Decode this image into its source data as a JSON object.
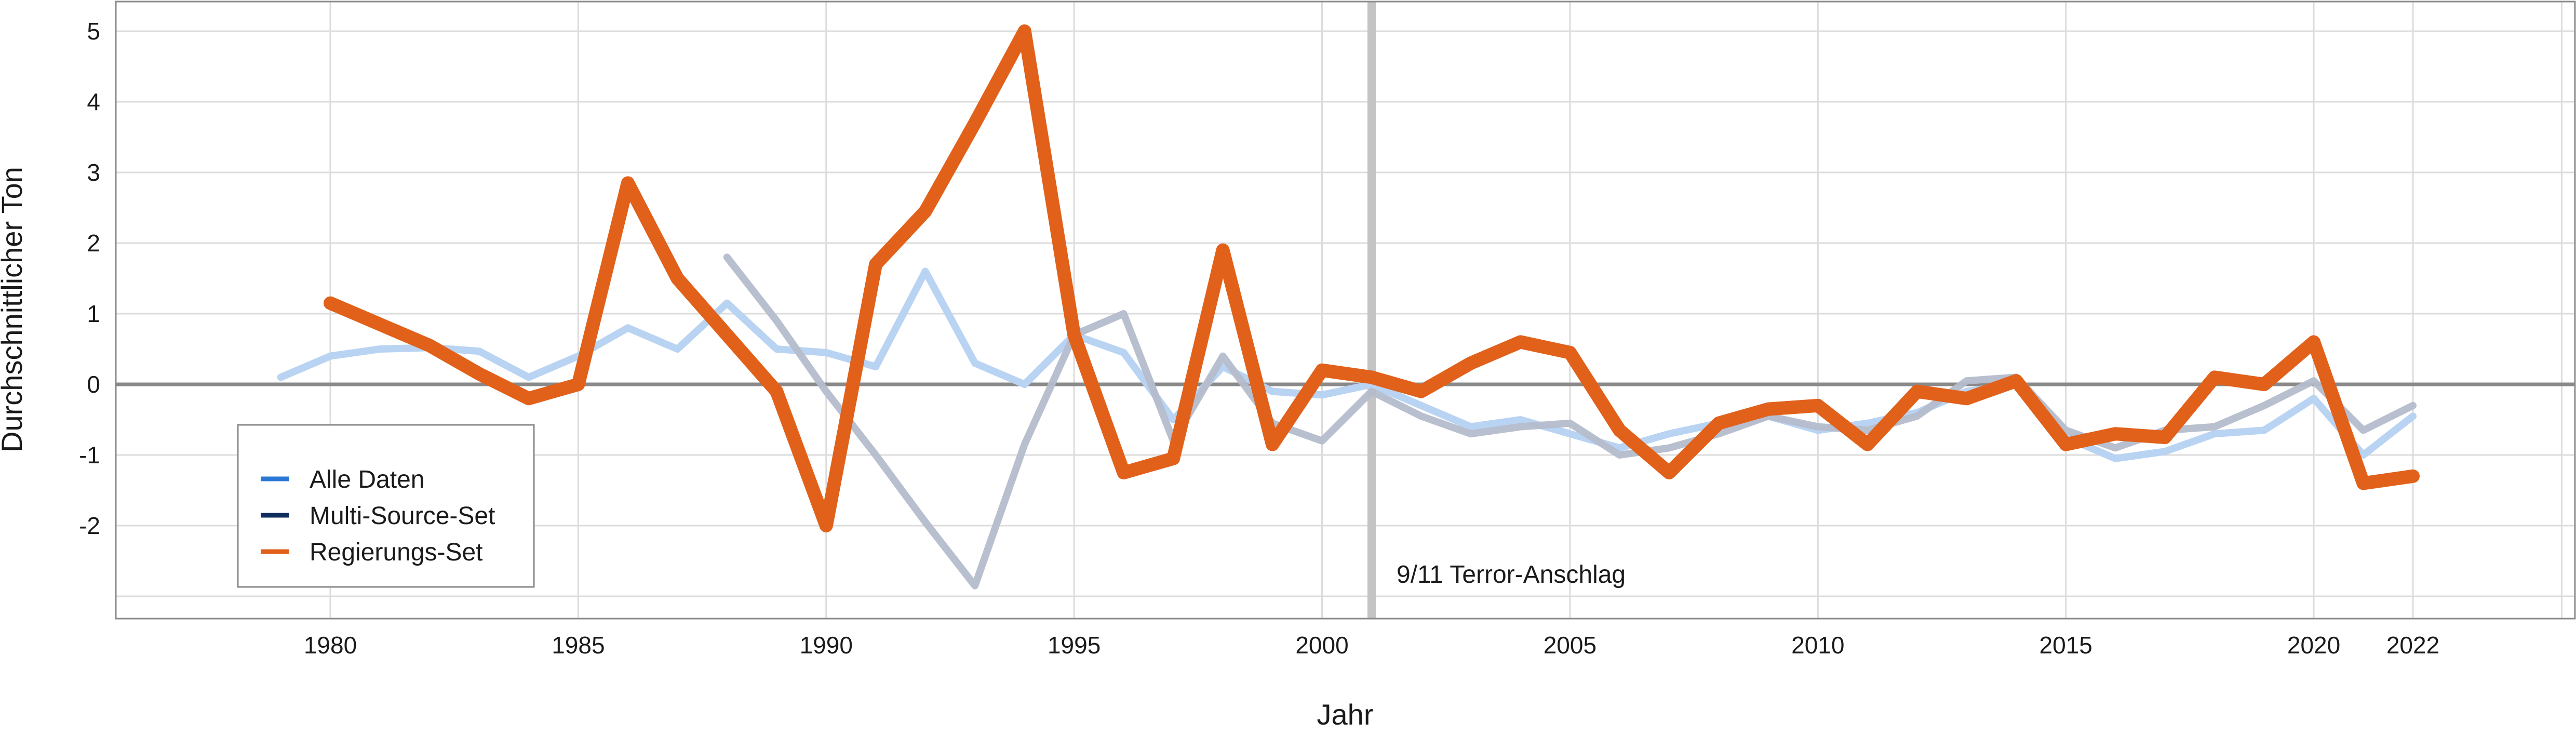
{
  "chart_data": {
    "type": "line",
    "xlabel": "Jahr",
    "ylabel": "Durchschnittlicher Ton",
    "xlim": [
      1975,
      2025
    ],
    "ylim": [
      -3.3,
      5.4
    ],
    "x_ticks": [
      1980,
      1985,
      1990,
      1995,
      2000,
      2005,
      2010,
      2015,
      2020,
      2022
    ],
    "y_ticks": [
      5,
      4,
      3,
      2,
      1,
      0,
      -1,
      -2
    ],
    "grid": true,
    "legend_position": "bottom-left",
    "series": [
      {
        "name": "Alle Daten",
        "color": "#b9d3f2",
        "x": [
          1979,
          1980,
          1981,
          1982,
          1983,
          1984,
          1985,
          1986,
          1987,
          1988,
          1989,
          1990,
          1991,
          1992,
          1993,
          1994,
          1995,
          1996,
          1997,
          1998,
          1999,
          2000,
          2001,
          2002,
          2003,
          2004,
          2005,
          2006,
          2007,
          2008,
          2009,
          2010,
          2011,
          2012,
          2013,
          2014,
          2015,
          2016,
          2017,
          2018,
          2019,
          2020,
          2021,
          2022
        ],
        "values": [
          0.1,
          0.4,
          0.5,
          0.52,
          0.47,
          0.1,
          0.4,
          0.8,
          0.5,
          1.15,
          0.5,
          0.45,
          0.25,
          1.6,
          0.3,
          0.0,
          0.7,
          0.45,
          -0.5,
          0.25,
          -0.1,
          -0.15,
          0.0,
          -0.3,
          -0.6,
          -0.5,
          -0.7,
          -0.9,
          -0.7,
          -0.55,
          -0.45,
          -0.65,
          -0.55,
          -0.4,
          -0.1,
          0.0,
          -0.75,
          -1.05,
          -0.95,
          -0.7,
          -0.65,
          -0.2,
          -1.0,
          -0.45
        ]
      },
      {
        "name": "Multi-Source-Set",
        "color": "#b4bccb",
        "x": [
          1988,
          1989,
          1990,
          1991,
          1992,
          1993,
          1994,
          1995,
          1996,
          1997,
          1998,
          1999,
          2000,
          2001,
          2002,
          2003,
          2004,
          2005,
          2006,
          2007,
          2008,
          2009,
          2010,
          2011,
          2012,
          2013,
          2014,
          2015,
          2016,
          2017,
          2018,
          2019,
          2020,
          2021,
          2022
        ],
        "values": [
          1.8,
          0.9,
          -0.1,
          -1.0,
          -1.95,
          -2.85,
          -0.85,
          0.7,
          1.0,
          -0.8,
          0.4,
          -0.55,
          -0.8,
          -0.1,
          -0.45,
          -0.7,
          -0.6,
          -0.55,
          -1.0,
          -0.9,
          -0.7,
          -0.45,
          -0.6,
          -0.65,
          -0.45,
          0.05,
          0.1,
          -0.65,
          -0.9,
          -0.65,
          -0.6,
          -0.3,
          0.05,
          -0.65,
          -0.3
        ]
      },
      {
        "name": "Regierungs-Set",
        "color": "#e1611b",
        "x": [
          1980,
          1981,
          1982,
          1983,
          1984,
          1985,
          1986,
          1987,
          1988,
          1989,
          1990,
          1991,
          1992,
          1993,
          1994,
          1995,
          1996,
          1997,
          1998,
          1999,
          2000,
          2001,
          2002,
          2003,
          2004,
          2005,
          2006,
          2007,
          2008,
          2009,
          2010,
          2011,
          2012,
          2013,
          2014,
          2015,
          2016,
          2017,
          2018,
          2019,
          2020,
          2021,
          2022
        ],
        "values": [
          1.15,
          0.85,
          0.55,
          0.15,
          -0.2,
          0.0,
          2.85,
          1.5,
          0.7,
          -0.1,
          -2.0,
          1.7,
          2.45,
          3.7,
          5.0,
          0.7,
          -1.25,
          -1.05,
          1.9,
          -0.85,
          0.2,
          0.1,
          -0.1,
          0.3,
          0.6,
          0.45,
          -0.65,
          -1.25,
          -0.55,
          -0.35,
          -0.3,
          -0.85,
          -0.1,
          -0.2,
          0.05,
          -0.85,
          -0.7,
          -0.75,
          0.1,
          0.0,
          0.6,
          -1.4,
          -1.3
        ]
      }
    ],
    "annotations": [
      {
        "x": 2001,
        "text": "9/11 Terror-Anschlag",
        "color": "#c4c4c4"
      }
    ]
  }
}
